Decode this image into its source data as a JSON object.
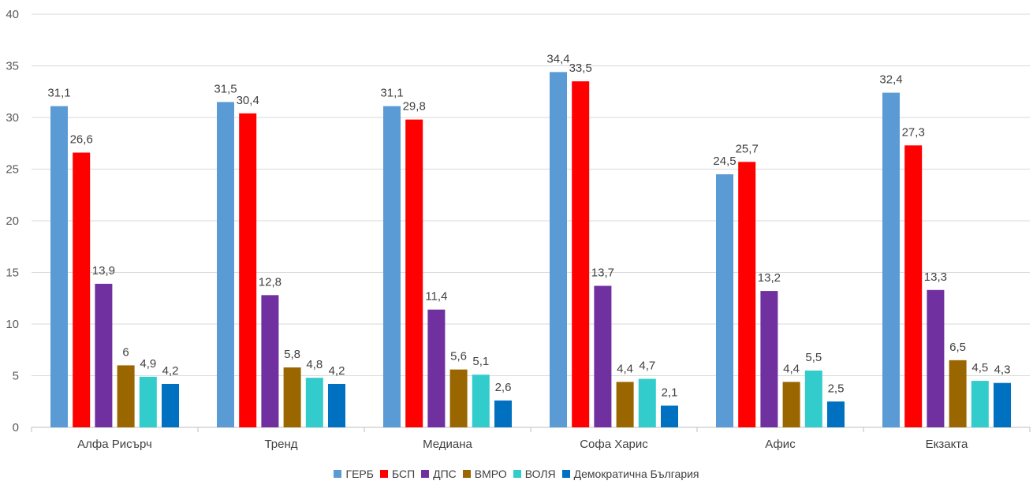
{
  "chart_data": {
    "type": "bar",
    "categories": [
      "Алфа Рисърч",
      "Тренд",
      "Медиана",
      "Софа Харис",
      "Афис",
      "Екзакта"
    ],
    "series": [
      {
        "name": "ГЕРБ",
        "color": "#5B9BD5",
        "values": [
          31.1,
          31.5,
          31.1,
          34.4,
          24.5,
          32.4
        ],
        "labels": [
          "31,1",
          "31,5",
          "31,1",
          "34,4",
          "24,5",
          "32,4"
        ]
      },
      {
        "name": "БСП",
        "color": "#FF0000",
        "values": [
          26.6,
          30.4,
          29.8,
          33.5,
          25.7,
          27.3
        ],
        "labels": [
          "26,6",
          "30,4",
          "29,8",
          "33,5",
          "25,7",
          "27,3"
        ]
      },
      {
        "name": "ДПС",
        "color": "#7030A0",
        "values": [
          13.9,
          12.8,
          11.4,
          13.7,
          13.2,
          13.3
        ],
        "labels": [
          "13,9",
          "12,8",
          "11,4",
          "13,7",
          "13,2",
          "13,3"
        ]
      },
      {
        "name": "ВМРО",
        "color": "#996600",
        "values": [
          6,
          5.8,
          5.6,
          4.4,
          4.4,
          6.5
        ],
        "labels": [
          "6",
          "5,8",
          "5,6",
          "4,4",
          "4,4",
          "6,5"
        ]
      },
      {
        "name": "ВОЛЯ",
        "color": "#33CCCC",
        "values": [
          4.9,
          4.8,
          5.1,
          4.7,
          5.5,
          4.5
        ],
        "labels": [
          "4,9",
          "4,8",
          "5,1",
          "4,7",
          "5,5",
          "4,5"
        ]
      },
      {
        "name": "Демократична България",
        "color": "#0070C0",
        "values": [
          4.2,
          4.2,
          2.6,
          2.1,
          2.5,
          4.3
        ],
        "labels": [
          "4,2",
          "4,2",
          "2,6",
          "2,1",
          "2,5",
          "4,3"
        ]
      }
    ],
    "ylim": [
      0,
      40
    ],
    "yticks": [
      "0",
      "5",
      "10",
      "15",
      "20",
      "25",
      "30",
      "35",
      "40"
    ],
    "ytick_values": [
      0,
      5,
      10,
      15,
      20,
      25,
      30,
      35,
      40
    ],
    "grid": true,
    "legend_position": "bottom"
  }
}
